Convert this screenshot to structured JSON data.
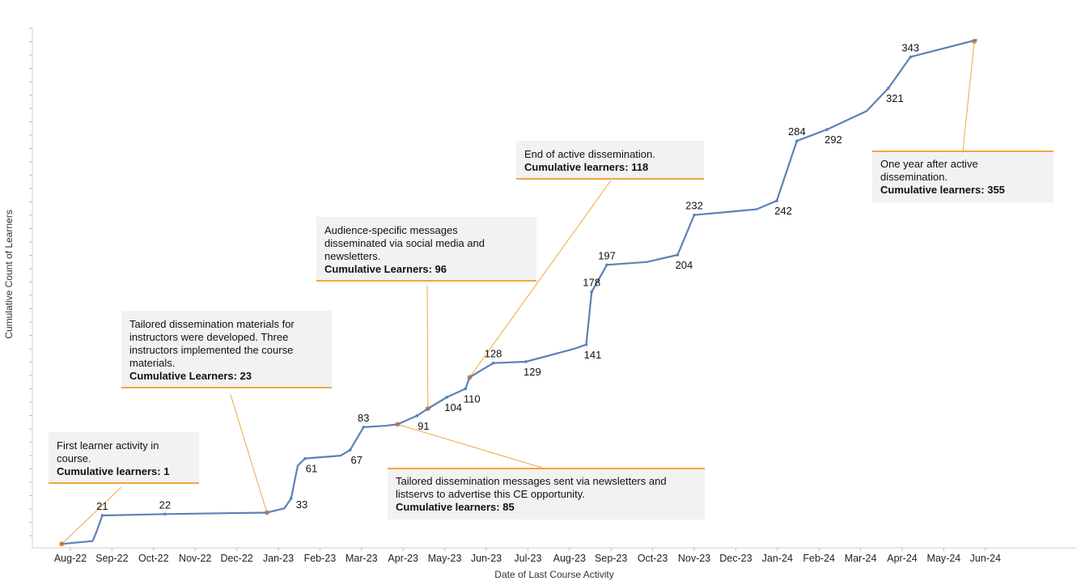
{
  "chart_data": {
    "type": "line",
    "xlabel": "Date of Last Course Activity",
    "ylabel": "Cumulative Count of Learners",
    "x_ticks": [
      "Aug-22",
      "Sep-22",
      "Oct-22",
      "Nov-22",
      "Dec-22",
      "Jan-23",
      "Feb-23",
      "Mar-23",
      "Apr-23",
      "May-23",
      "Jun-23",
      "Jul-23",
      "Aug-23",
      "Sep-23",
      "Oct-23",
      "Nov-23",
      "Dec-23",
      "Jan-24",
      "Feb-24",
      "Mar-24",
      "Apr-24",
      "May-24",
      "Jun-24"
    ],
    "ylim": [
      0,
      360
    ],
    "grid": false,
    "series_color": "#5b82b5",
    "annotation_color": "#f2a640",
    "points": [
      {
        "date": "2022-08-10",
        "value": 1
      },
      {
        "date": "2022-09-02",
        "value": 3
      },
      {
        "date": "2022-09-05",
        "value": 10
      },
      {
        "date": "2022-09-09",
        "value": 21
      },
      {
        "date": "2022-10-25",
        "value": 22
      },
      {
        "date": "2023-01-08",
        "value": 23
      },
      {
        "date": "2023-01-21",
        "value": 26
      },
      {
        "date": "2023-01-26",
        "value": 33
      },
      {
        "date": "2023-01-31",
        "value": 56
      },
      {
        "date": "2023-02-05",
        "value": 61
      },
      {
        "date": "2023-03-01",
        "value": 63
      },
      {
        "date": "2023-03-08",
        "value": 67
      },
      {
        "date": "2023-03-18",
        "value": 83
      },
      {
        "date": "2023-04-03",
        "value": 84
      },
      {
        "date": "2023-04-12",
        "value": 85
      },
      {
        "date": "2023-04-26",
        "value": 91
      },
      {
        "date": "2023-05-04",
        "value": 96
      },
      {
        "date": "2023-05-18",
        "value": 104
      },
      {
        "date": "2023-06-01",
        "value": 110
      },
      {
        "date": "2023-06-04",
        "value": 118
      },
      {
        "date": "2023-06-21",
        "value": 128
      },
      {
        "date": "2023-07-15",
        "value": 129
      },
      {
        "date": "2023-08-20",
        "value": 138
      },
      {
        "date": "2023-08-29",
        "value": 141
      },
      {
        "date": "2023-09-02",
        "value": 178
      },
      {
        "date": "2023-09-13",
        "value": 197
      },
      {
        "date": "2023-10-12",
        "value": 199
      },
      {
        "date": "2023-11-04",
        "value": 204
      },
      {
        "date": "2023-11-16",
        "value": 232
      },
      {
        "date": "2024-01-01",
        "value": 236
      },
      {
        "date": "2024-01-16",
        "value": 242
      },
      {
        "date": "2024-01-31",
        "value": 284
      },
      {
        "date": "2024-02-21",
        "value": 292
      },
      {
        "date": "2024-03-21",
        "value": 305
      },
      {
        "date": "2024-04-06",
        "value": 321
      },
      {
        "date": "2024-04-22",
        "value": 343
      },
      {
        "date": "2024-06-10",
        "value": 355
      }
    ],
    "point_labels": [
      {
        "date": "2022-09-09",
        "value": 21,
        "text": "21",
        "pos": "above"
      },
      {
        "date": "2022-10-25",
        "value": 22,
        "text": "22",
        "pos": "above"
      },
      {
        "date": "2023-01-26",
        "value": 33,
        "text": "33",
        "pos": "right"
      },
      {
        "date": "2023-02-05",
        "value": 61,
        "text": "61",
        "pos": "below"
      },
      {
        "date": "2023-03-08",
        "value": 67,
        "text": "67",
        "pos": "below"
      },
      {
        "date": "2023-03-18",
        "value": 83,
        "text": "83",
        "pos": "above"
      },
      {
        "date": "2023-04-26",
        "value": 91,
        "text": "91",
        "pos": "below"
      },
      {
        "date": "2023-05-18",
        "value": 104,
        "text": "104",
        "pos": "below"
      },
      {
        "date": "2023-06-01",
        "value": 110,
        "text": "110",
        "pos": "below"
      },
      {
        "date": "2023-06-21",
        "value": 128,
        "text": "128",
        "pos": "above"
      },
      {
        "date": "2023-07-15",
        "value": 129,
        "text": "129",
        "pos": "below"
      },
      {
        "date": "2023-08-29",
        "value": 141,
        "text": "141",
        "pos": "below"
      },
      {
        "date": "2023-09-02",
        "value": 178,
        "text": "178",
        "pos": "above"
      },
      {
        "date": "2023-09-13",
        "value": 197,
        "text": "197",
        "pos": "above"
      },
      {
        "date": "2023-11-04",
        "value": 204,
        "text": "204",
        "pos": "below"
      },
      {
        "date": "2023-11-16",
        "value": 232,
        "text": "232",
        "pos": "above"
      },
      {
        "date": "2024-01-16",
        "value": 242,
        "text": "242",
        "pos": "below"
      },
      {
        "date": "2024-01-31",
        "value": 284,
        "text": "284",
        "pos": "above"
      },
      {
        "date": "2024-02-21",
        "value": 292,
        "text": "292",
        "pos": "below"
      },
      {
        "date": "2024-04-06",
        "value": 321,
        "text": "321",
        "pos": "below"
      },
      {
        "date": "2024-04-22",
        "value": 343,
        "text": "343",
        "pos": "above"
      }
    ],
    "annotations": [
      {
        "lines": [
          "First learner activity in",
          "course."
        ],
        "bold": "Cumulative learners: 1",
        "date": "2022-08-10",
        "value": 1
      },
      {
        "lines": [
          "Tailored dissemination materials for",
          "instructors were developed. Three",
          "instructors implemented the course",
          "materials."
        ],
        "bold": "Cumulative Learners: 23",
        "date": "2023-01-08",
        "value": 23
      },
      {
        "lines": [
          "Audience-specific messages",
          "disseminated via social media and",
          "newsletters."
        ],
        "bold": "Cumulative Learners: 96",
        "date": "2023-05-04",
        "value": 96
      },
      {
        "lines": [
          "End of active dissemination."
        ],
        "bold": "Cumulative learners: 118",
        "date": "2023-06-04",
        "value": 118
      },
      {
        "lines": [
          "Tailored dissemination messages sent via newsletters and",
          "listservs to advertise this CE opportunity."
        ],
        "bold": "Cumulative learners: 85",
        "date": "2023-04-12",
        "value": 85
      },
      {
        "lines": [
          "One year after active",
          "dissemination."
        ],
        "bold": "Cumulative learners: 355",
        "date": "2024-06-08",
        "value": 354
      }
    ]
  }
}
